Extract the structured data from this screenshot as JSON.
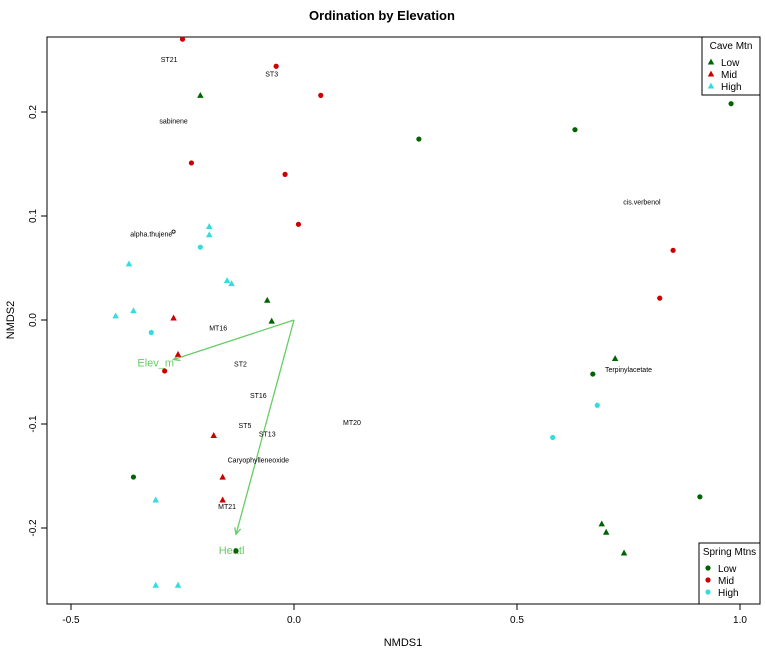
{
  "chart_data": {
    "type": "scatter",
    "title": "Ordination by Elevation",
    "xlabel": "NMDS1",
    "ylabel": "NMDS2",
    "xlim": [
      -0.5,
      1.0
    ],
    "ylim": [
      -0.25,
      0.25
    ],
    "xticks": [
      -0.5,
      0.0,
      0.5,
      1.0
    ],
    "yticks": [
      -0.2,
      -0.1,
      0.0,
      0.1,
      0.2
    ],
    "xtick_labels": [
      "-0.5",
      "0.0",
      "0.5",
      "1.0"
    ],
    "ytick_labels": [
      "-0.2",
      "-0.1",
      "0.0",
      "0.1",
      "0.2"
    ],
    "grid": false,
    "colors": {
      "Low": "#006400",
      "Mid": "#cc0000",
      "High": "#33dddd",
      "vector": "#66cc66"
    },
    "legends": [
      {
        "title": "Cave Mtn",
        "position": "top-right",
        "shape": "triangle",
        "entries": [
          "Low",
          "Mid",
          "High"
        ]
      },
      {
        "title": "Spring Mtns",
        "position": "bottom-right",
        "shape": "circle",
        "entries": [
          "Low",
          "Mid",
          "High"
        ]
      }
    ],
    "series": [
      {
        "group": "Cave Mtn",
        "level": "Low",
        "shape": "triangle",
        "points": [
          [
            -0.21,
            0.216
          ],
          [
            -0.06,
            0.019
          ],
          [
            -0.05,
            -0.001
          ],
          [
            0.72,
            -0.037
          ],
          [
            0.69,
            -0.196
          ],
          [
            0.7,
            -0.204
          ],
          [
            0.74,
            -0.224
          ]
        ]
      },
      {
        "group": "Cave Mtn",
        "level": "Mid",
        "shape": "triangle",
        "points": [
          [
            -0.27,
            0.002
          ],
          [
            -0.26,
            -0.033
          ],
          [
            -0.18,
            -0.111
          ],
          [
            -0.16,
            -0.151
          ],
          [
            -0.16,
            -0.173
          ]
        ]
      },
      {
        "group": "Cave Mtn",
        "level": "High",
        "shape": "triangle",
        "points": [
          [
            -0.37,
            0.054
          ],
          [
            -0.36,
            0.009
          ],
          [
            -0.4,
            0.004
          ],
          [
            -0.19,
            0.09
          ],
          [
            -0.19,
            0.082
          ],
          [
            -0.15,
            0.038
          ],
          [
            -0.14,
            0.035
          ],
          [
            -0.31,
            -0.173
          ],
          [
            -0.31,
            -0.255
          ],
          [
            -0.26,
            -0.255
          ]
        ]
      },
      {
        "group": "Spring Mtns",
        "level": "Low",
        "shape": "circle",
        "points": [
          [
            0.98,
            0.208
          ],
          [
            0.28,
            0.174
          ],
          [
            0.63,
            0.183
          ],
          [
            0.67,
            -0.052
          ],
          [
            0.91,
            -0.17
          ],
          [
            -0.36,
            -0.151
          ],
          [
            -0.13,
            -0.222
          ]
        ]
      },
      {
        "group": "Spring Mtns",
        "level": "Mid",
        "shape": "circle",
        "points": [
          [
            -0.25,
            0.27
          ],
          [
            -0.04,
            0.244
          ],
          [
            0.06,
            0.216
          ],
          [
            -0.23,
            0.151
          ],
          [
            -0.02,
            0.14
          ],
          [
            0.01,
            0.092
          ],
          [
            0.85,
            0.067
          ],
          [
            0.82,
            0.021
          ],
          [
            -0.29,
            -0.049
          ]
        ]
      },
      {
        "group": "Spring Mtns",
        "level": "High",
        "shape": "circle",
        "points": [
          [
            -0.21,
            0.07
          ],
          [
            -0.32,
            -0.012
          ],
          [
            0.68,
            -0.082
          ],
          [
            0.58,
            -0.113
          ]
        ]
      }
    ],
    "point_labels": [
      {
        "text": "ST21",
        "x": -0.28,
        "y": 0.25
      },
      {
        "text": "ST3",
        "x": -0.05,
        "y": 0.236
      },
      {
        "text": "sabinene",
        "x": -0.27,
        "y": 0.191
      },
      {
        "text": "alpha.thujene",
        "x": -0.32,
        "y": 0.082
      },
      {
        "text": "cis.verbenol",
        "x": 0.78,
        "y": 0.113
      },
      {
        "text": "MT16",
        "x": -0.17,
        "y": -0.008
      },
      {
        "text": "ST2",
        "x": -0.12,
        "y": -0.043
      },
      {
        "text": "Terpinylacetate",
        "x": 0.75,
        "y": -0.048
      },
      {
        "text": "ST16",
        "x": -0.08,
        "y": -0.073
      },
      {
        "text": "MT20",
        "x": 0.13,
        "y": -0.099
      },
      {
        "text": "ST5",
        "x": -0.11,
        "y": -0.102
      },
      {
        "text": "ST13",
        "x": -0.06,
        "y": -0.11
      },
      {
        "text": "Caryophylleneoxide",
        "x": -0.08,
        "y": -0.135
      },
      {
        "text": "MT21",
        "x": -0.15,
        "y": -0.18
      }
    ],
    "vectors": [
      {
        "label": "Elev_m",
        "start": [
          0.0,
          0.0
        ],
        "end": [
          -0.27,
          -0.038
        ],
        "label_at": [
          -0.31,
          -0.041
        ]
      },
      {
        "label": "Heatl",
        "start": [
          0.0,
          0.0
        ],
        "end": [
          -0.13,
          -0.206
        ],
        "label_at": [
          -0.14,
          -0.221
        ]
      }
    ],
    "centroid_marker": {
      "x": -0.27,
      "y": 0.085
    }
  }
}
